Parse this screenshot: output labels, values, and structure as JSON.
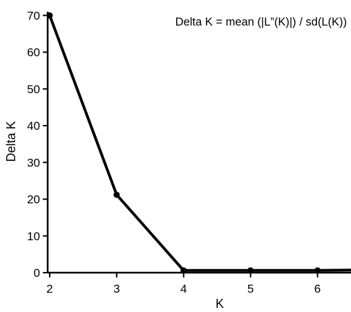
{
  "chart_data": {
    "type": "line",
    "annotation": "Delta K = mean (|L”(K)|) / sd(L(K))",
    "xlabel": "K",
    "ylabel": "Delta K",
    "x_ticks": [
      "2",
      "3",
      "4",
      "5",
      "6"
    ],
    "y_ticks": [
      "0",
      "10",
      "20",
      "30",
      "40",
      "50",
      "60",
      "70"
    ],
    "xlim": [
      1.97,
      6.5
    ],
    "ylim": [
      0,
      71
    ],
    "grid": false,
    "series": [
      {
        "x": [
          2,
          3,
          4,
          5,
          6,
          6.5
        ],
        "y": [
          70,
          21.2,
          0.6,
          0.6,
          0.6,
          0.7
        ],
        "markers": [
          true,
          true,
          true,
          true,
          true,
          false
        ]
      }
    ],
    "colors": {
      "line": "#000000",
      "axis": "#000000"
    }
  }
}
